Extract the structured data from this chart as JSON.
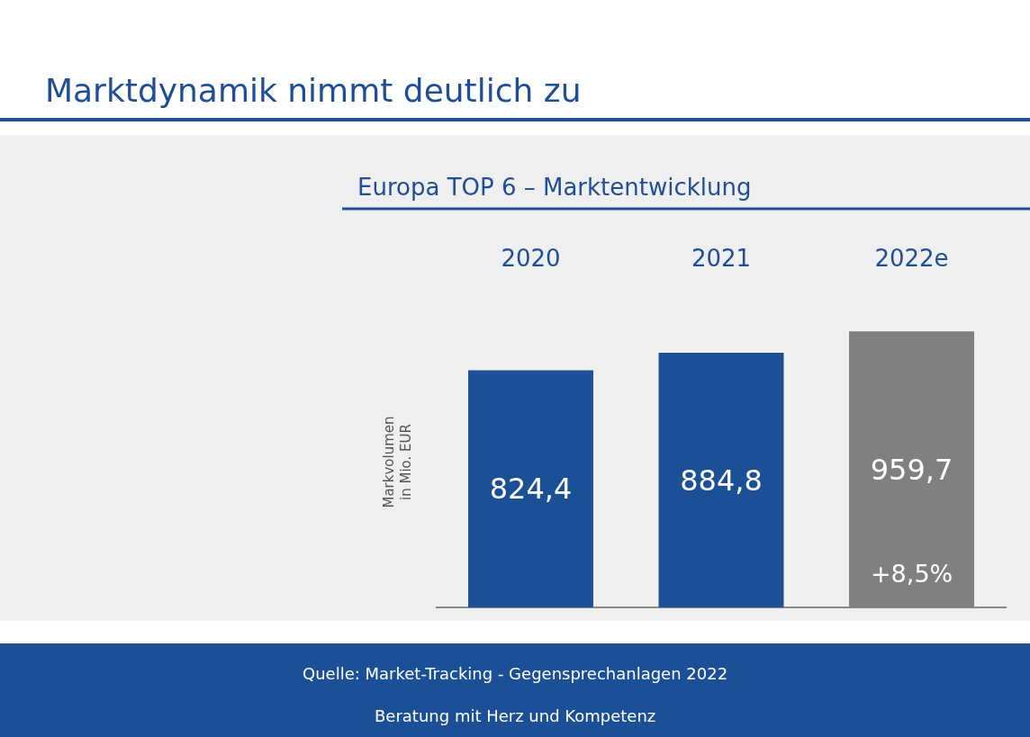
{
  "chart_data": {
    "type": "bar",
    "title": "Marktdynamik nimmt deutlich zu",
    "subtitle": "Europa TOP 6 – Marktentwicklung",
    "ylabel": "Markvolumen\nin Mio. EUR",
    "categories": [
      "2020",
      "2021",
      "2022e"
    ],
    "values": [
      824.4,
      884.8,
      959.7
    ],
    "colors": [
      "#1c5096",
      "#1c5096",
      "#808080"
    ],
    "value_labels": [
      "824,4",
      "884,8",
      "959,7"
    ],
    "annotations": [
      "+8,5%",
      "Quelle: Market-Tracking - Gegensprechanlagen 2022",
      "Beratung mit Herz und Kompetenz"
    ],
    "tick_labels": "x",
    "grid": false
  }
}
